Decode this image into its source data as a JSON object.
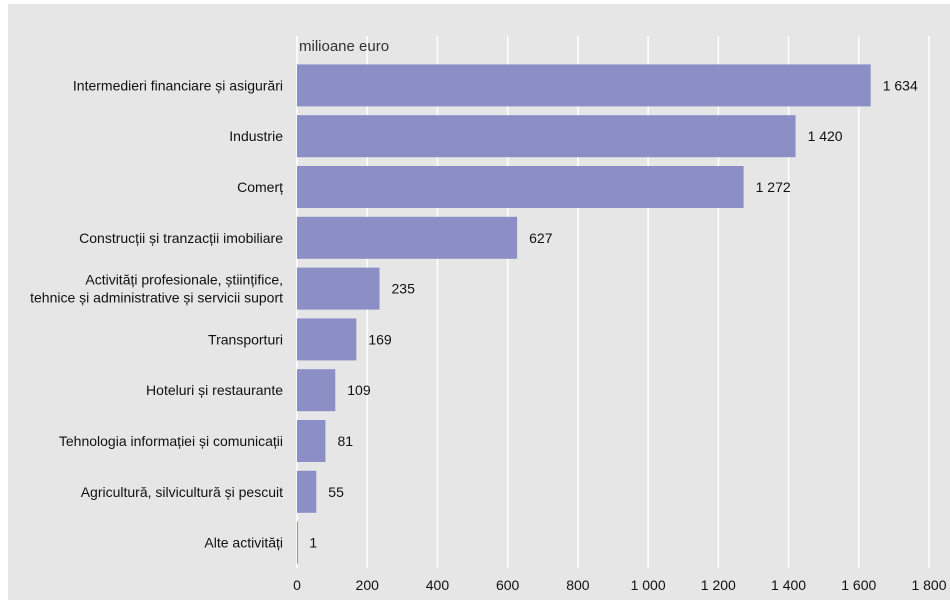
{
  "chart_data": {
    "type": "bar",
    "orientation": "horizontal",
    "unit_label": "milioane euro",
    "categories": [
      [
        "Intermedieri financiare și asigurări"
      ],
      [
        "Industrie"
      ],
      [
        "Comerț"
      ],
      [
        "Construcții și tranzacții imobiliare"
      ],
      [
        "Activități profesionale, științifice,",
        "tehnice și administrative și servicii suport"
      ],
      [
        "Transporturi"
      ],
      [
        "Hoteluri și restaurante"
      ],
      [
        "Tehnologia informației și comunicații"
      ],
      [
        "Agricultură, silvicultură și pescuit"
      ],
      [
        "Alte activități"
      ]
    ],
    "values": [
      1634,
      1420,
      1272,
      627,
      235,
      169,
      109,
      81,
      55,
      1
    ],
    "value_labels": [
      "1 634",
      "1 420",
      "1 272",
      "627",
      "235",
      "169",
      "109",
      "81",
      "55",
      "1"
    ],
    "xlim": [
      0,
      1800
    ],
    "x_ticks": [
      0,
      200,
      400,
      600,
      800,
      1000,
      1200,
      1400,
      1600,
      1800
    ],
    "x_tick_labels": [
      "0",
      "200",
      "400",
      "600",
      "800",
      "1 000",
      "1 200",
      "1 400",
      "1 600",
      "1 800"
    ],
    "grid": true,
    "colors": {
      "bar": "#8b8fc6",
      "background": "#e6e6e6",
      "grid": "#ffffff"
    }
  }
}
